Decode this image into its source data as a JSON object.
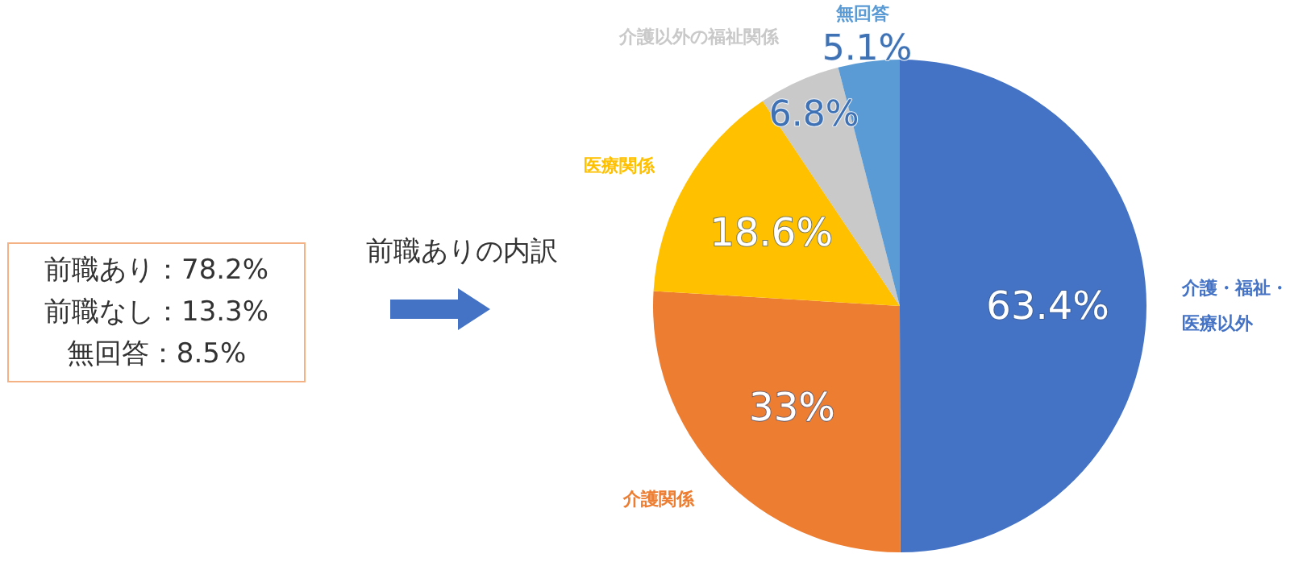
{
  "chart_data": {
    "type": "pie",
    "title": "前職ありの内訳",
    "categories": [
      "介護・福祉・医療以外",
      "介護関係",
      "医療関係",
      "介護以外の福祉関係",
      "無回答"
    ],
    "values": [
      63.4,
      33,
      18.6,
      6.8,
      5.1
    ],
    "value_labels": [
      "63.4%",
      "33%",
      "18.6%",
      "6.8%",
      "5.1%"
    ],
    "colors": [
      "#4472c4",
      "#ed7d31",
      "#ffc000",
      "#c9c9c9",
      "#5b9bd5"
    ],
    "legend": false,
    "annotations": [
      "前職あり：78.2%",
      "前職なし：13.3%",
      "無回答：8.5%"
    ]
  }
}
